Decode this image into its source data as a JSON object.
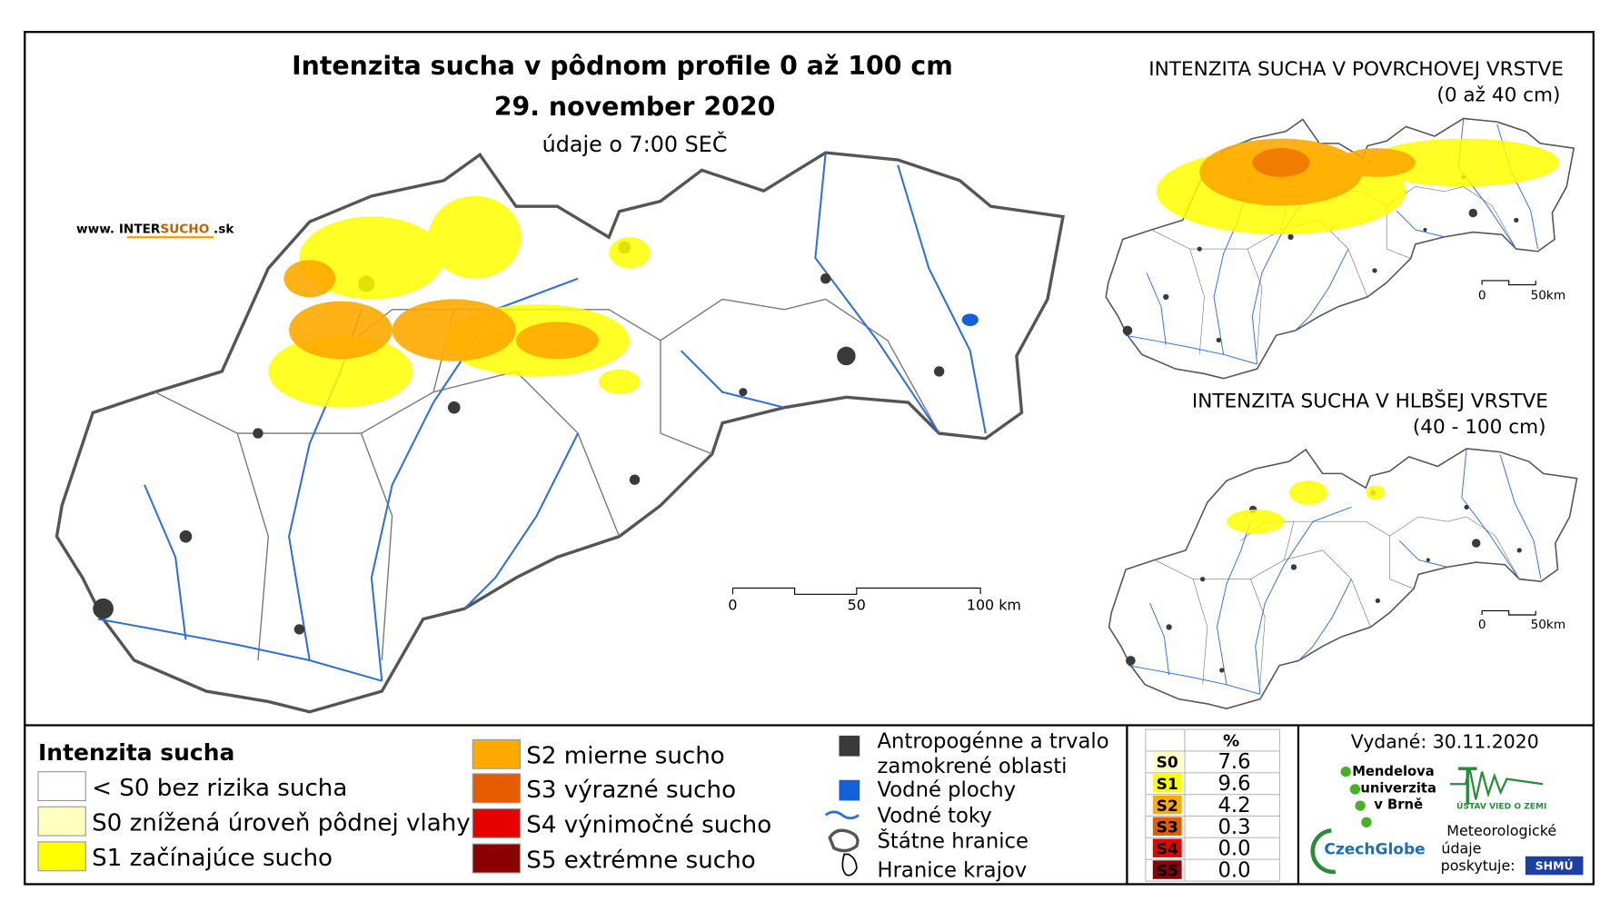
{
  "main_map": {
    "title": "Intenzita sucha v pôdnom profile 0 až 100 cm",
    "date": "29. november 2020",
    "time_note": "údaje o 7:00 SEČ",
    "website": {
      "prefix": "www. INTER",
      "highlight": "SUCHO",
      "suffix": " .sk"
    },
    "scale": [
      "0",
      "50",
      "100 km"
    ]
  },
  "insets": [
    {
      "title": "INTENZITA SUCHA V POVRCHOVEJ VRSTVE",
      "subtitle": "(0 až 40 cm)",
      "scale": [
        "0",
        "50km"
      ]
    },
    {
      "title": "INTENZITA SUCHA V HLBŠEJ VRSTVE",
      "subtitle": "(40 - 100 cm)",
      "scale": [
        "0",
        "50km"
      ]
    }
  ],
  "legend": {
    "title": "Intenzita sucha",
    "items": [
      {
        "label": "< S0 bez rizika sucha",
        "color": "#ffffff"
      },
      {
        "label": "S0 znížená úroveň pôdnej vlahy",
        "color": "#ffffc0"
      },
      {
        "label": "S1 začínajúce sucho",
        "color": "#ffff00"
      },
      {
        "label": "S2 mierne sucho",
        "color": "#ffaa00"
      },
      {
        "label": "S3 výrazné sucho",
        "color": "#e65a00"
      },
      {
        "label": "S4 výnimočné sucho",
        "color": "#e60000"
      },
      {
        "label": "S5 extrémne sucho",
        "color": "#8b0000"
      }
    ]
  },
  "overlay_legend": [
    {
      "label": "Antropogénne a trvalo zamokrené oblasti"
    },
    {
      "label": "Vodné plochy"
    },
    {
      "label": "Vodné toky"
    },
    {
      "label": "Štátne hranice"
    },
    {
      "label": "Hranice krajov"
    }
  ],
  "stats": {
    "header": "%",
    "rows": [
      {
        "class": "S0",
        "value": "7.6",
        "color": "#ffffc0"
      },
      {
        "class": "S1",
        "value": "9.6",
        "color": "#ffff00"
      },
      {
        "class": "S2",
        "value": "4.2",
        "color": "#ffaa00"
      },
      {
        "class": "S3",
        "value": "0.3",
        "color": "#e65a00"
      },
      {
        "class": "S4",
        "value": "0.0",
        "color": "#e60000"
      },
      {
        "class": "S5",
        "value": "0.0",
        "color": "#8b0000"
      }
    ]
  },
  "issued": "Vydané: 30.11.2020",
  "credits": {
    "mendel": [
      "Mendelova",
      "univerzita",
      "v Brně"
    ],
    "czechglobe": "CzechGlobe",
    "ustav": "ÚSTAV VIED O ZEMI",
    "meteo": [
      "Meteorologické",
      "údaje",
      "poskytuje:"
    ],
    "shmu": "SHMÚ"
  }
}
